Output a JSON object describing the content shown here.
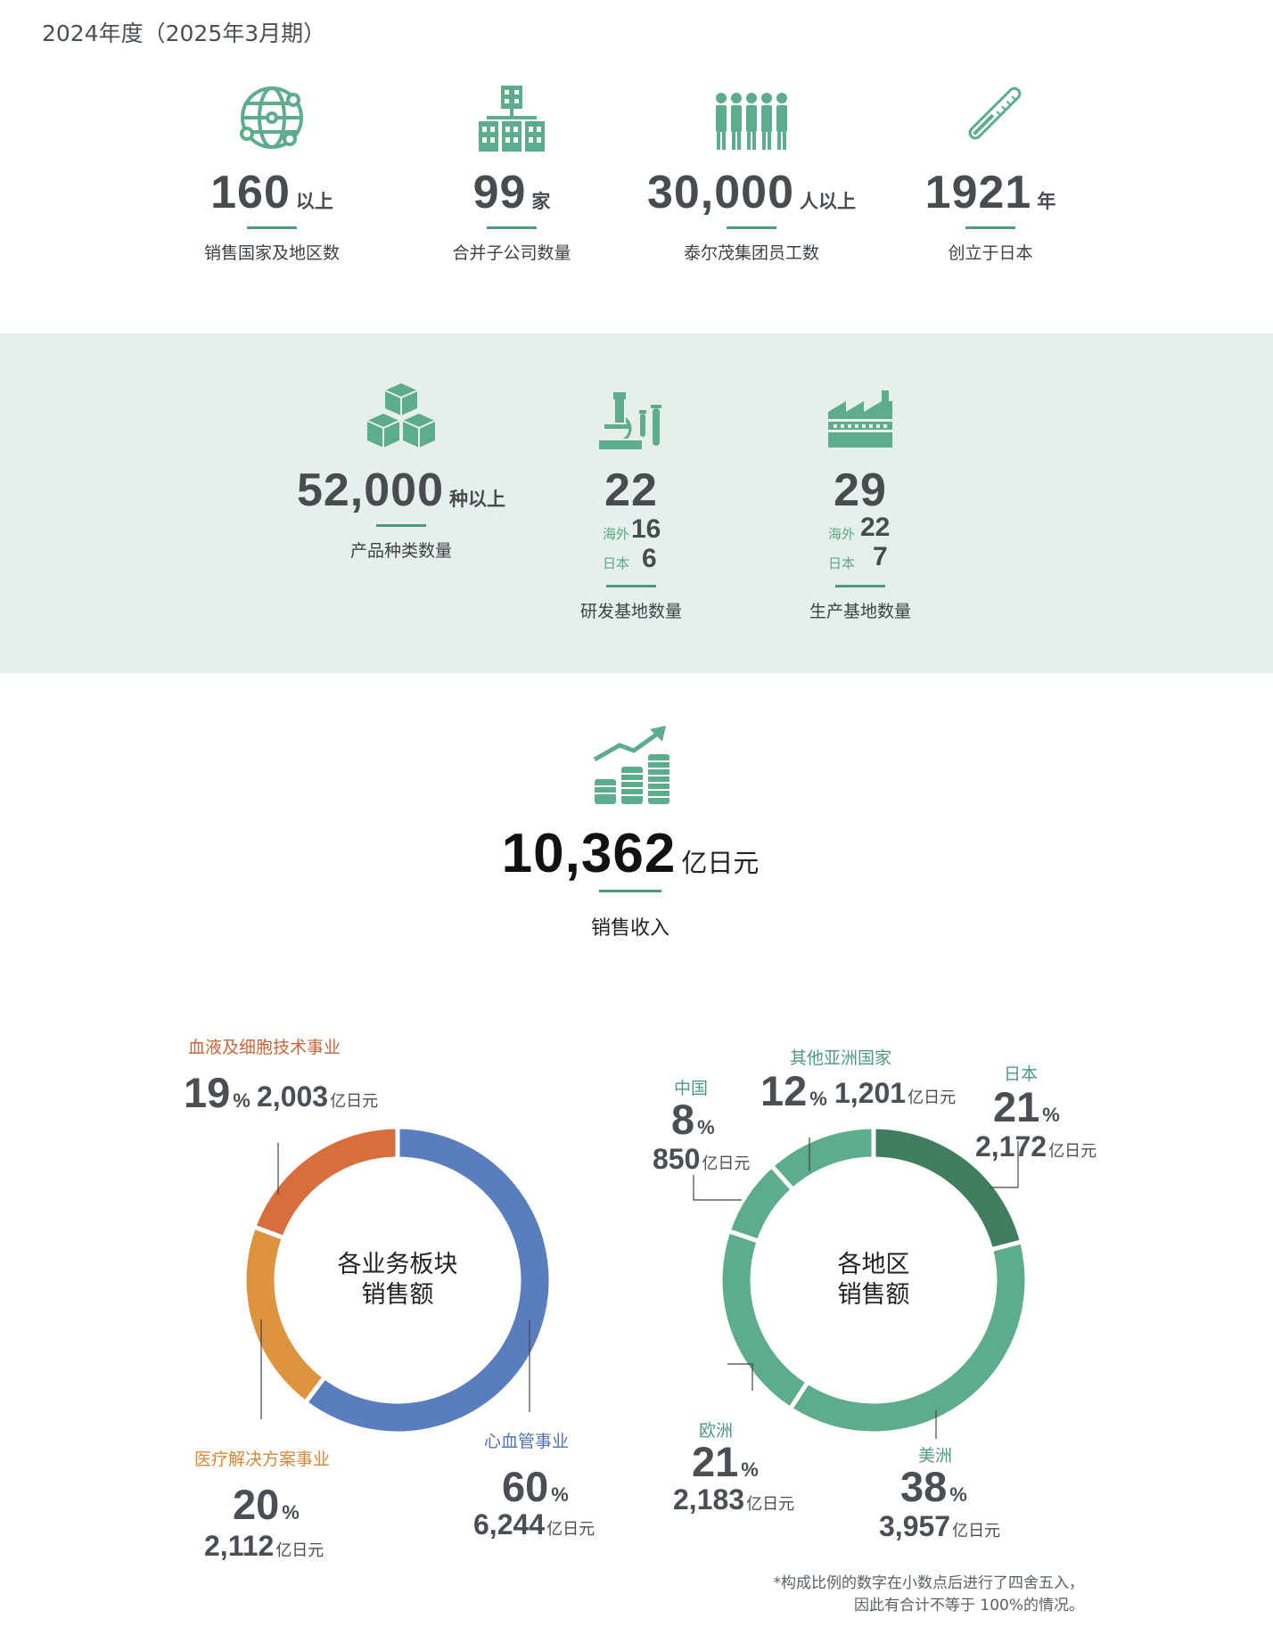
{
  "period": "2024年度（2025年3月期）",
  "stats_top": [
    {
      "icon": "globe-icon",
      "value": "160",
      "unit": "以上",
      "label": "销售国家及地区数"
    },
    {
      "icon": "building-hierarchy-icon",
      "value": "99",
      "unit": "家",
      "label": "合并子公司数量"
    },
    {
      "icon": "people-group-icon",
      "value": "30,000",
      "unit": "人以上",
      "label": "泰尔茂集团员工数"
    },
    {
      "icon": "thermometer-icon",
      "value": "1921",
      "unit": "年",
      "label": "创立于日本"
    }
  ],
  "stats_band": {
    "products": {
      "icon": "boxes-icon",
      "value": "52,000",
      "unit": "种以上",
      "label": "产品种类数量"
    },
    "rd": {
      "icon": "microscope-icon",
      "value": "22",
      "overseas_label": "海外",
      "overseas": "16",
      "japan_label": "日本",
      "japan": "6",
      "label": "研发基地数量"
    },
    "production": {
      "icon": "factory-icon",
      "value": "29",
      "overseas_label": "海外",
      "overseas": "22",
      "japan_label": "日本",
      "japan": "7",
      "label": "生产基地数量"
    }
  },
  "revenue": {
    "icon": "growth-coins-icon",
    "value": "10,362",
    "unit": "亿日元",
    "label": "销售收入"
  },
  "colors": {
    "accent": "#4e9a7d",
    "band": "#e6efea",
    "blue": "#5a7dbd",
    "orange_dark": "#d66f3d",
    "orange_light": "#de933e",
    "green": "#5dac8c",
    "green_dark": "#3f7e5e"
  },
  "chart_data": [
    {
      "type": "pie",
      "center_lines": [
        "各业务板块",
        "销售额"
      ],
      "unit": "亿日元",
      "slices": [
        {
          "name": "心血管事业",
          "percent": 60,
          "value": 6244,
          "amount": "6,244",
          "color": "#5a7dbd"
        },
        {
          "name": "医疗解决方案事业",
          "percent": 20,
          "value": 2112,
          "amount": "2,112",
          "color": "#de933e"
        },
        {
          "name": "血液及细胞技术事业",
          "percent": 19,
          "value": 2003,
          "amount": "2,003",
          "color": "#d66f3d"
        }
      ]
    },
    {
      "type": "pie",
      "center_lines": [
        "各地区",
        "销售额"
      ],
      "unit": "亿日元",
      "slices": [
        {
          "name": "日本",
          "percent": 21,
          "value": 2172,
          "amount": "2,172",
          "color": "#3f7e5e"
        },
        {
          "name": "美洲",
          "percent": 38,
          "value": 3957,
          "amount": "3,957",
          "color": "#5dac8c"
        },
        {
          "name": "欧洲",
          "percent": 21,
          "value": 2183,
          "amount": "2,183",
          "color": "#5dac8c"
        },
        {
          "name": "中国",
          "percent": 8,
          "value": 850,
          "amount": "850",
          "color": "#5dac8c"
        },
        {
          "name": "其他亚洲国家",
          "percent": 12,
          "value": 1201,
          "amount": "1,201",
          "color": "#5dac8c"
        }
      ]
    }
  ],
  "percent_sign": "%",
  "footnote": [
    "*构成比例的数字在小数点后进行了四舍五入，",
    "因此有合计不等于 100%的情况。"
  ]
}
